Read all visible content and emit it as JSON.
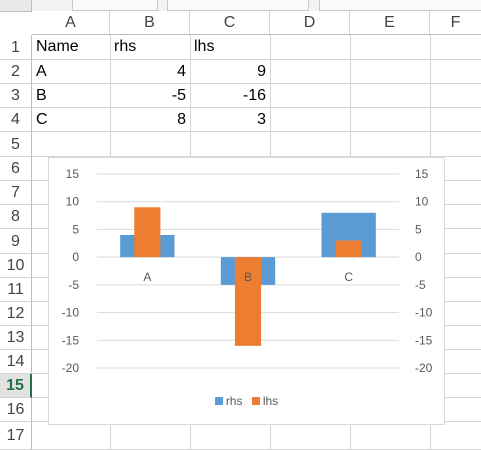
{
  "columns": [
    "A",
    "B",
    "C",
    "D",
    "E",
    "F"
  ],
  "rows": [
    "1",
    "2",
    "3",
    "4",
    "5",
    "6",
    "7",
    "8",
    "9",
    "10",
    "11",
    "12",
    "13",
    "14",
    "15",
    "16",
    "17"
  ],
  "active_row": "15",
  "cells": {
    "A1": "Name",
    "B1": "rhs",
    "C1": "lhs",
    "A2": "A",
    "B2": "4",
    "C2": "9",
    "A3": "B",
    "B3": "-5",
    "C3": "-16",
    "A4": "C",
    "B4": "8",
    "C4": "3"
  },
  "chart_data": {
    "type": "bar",
    "categories": [
      "A",
      "B",
      "C"
    ],
    "series": [
      {
        "name": "rhs",
        "values": [
          4,
          -5,
          8
        ],
        "color": "#5b9bd5",
        "axis": "primary"
      },
      {
        "name": "lhs",
        "values": [
          9,
          -16,
          3
        ],
        "color": "#ed7d31",
        "axis": "secondary"
      }
    ],
    "ylim": [
      -20,
      15
    ],
    "ticks": [
      "15",
      "10",
      "5",
      "0",
      "-5",
      "-10",
      "-15",
      "-20"
    ],
    "secondary_ylim": [
      -20,
      15
    ],
    "secondary_ticks": [
      "15",
      "10",
      "5",
      "0",
      "-5",
      "-10",
      "-15",
      "-20"
    ],
    "legend": "bottom",
    "grid": true
  }
}
